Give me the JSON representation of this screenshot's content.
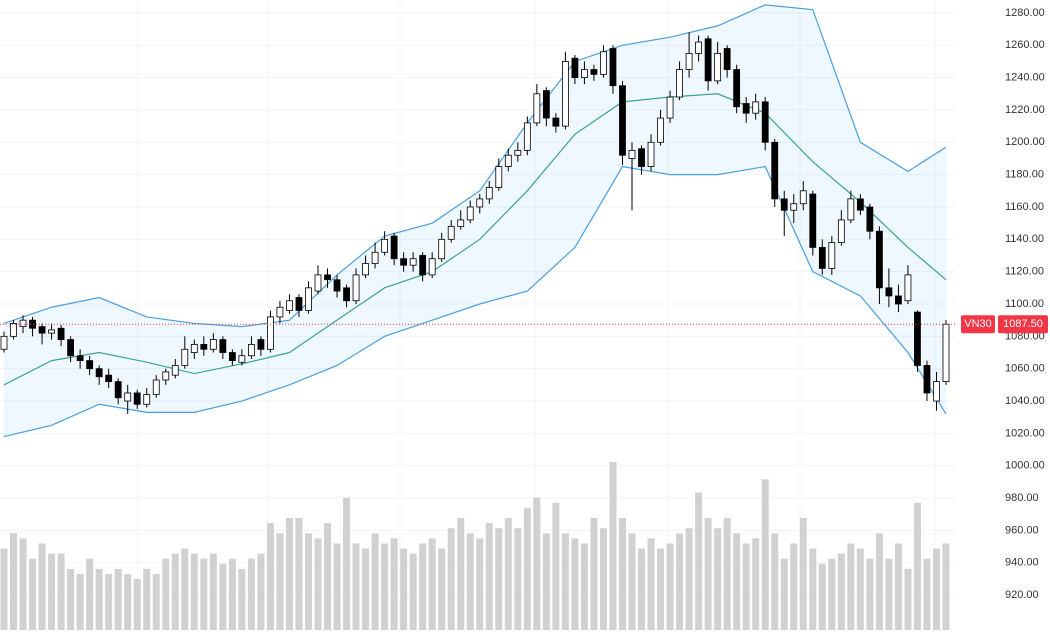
{
  "chart_data": {
    "type": "candlestick",
    "ylim": [
      898.4,
      1288
    ],
    "yticks": [
      {
        "value": 1280,
        "label": "1280.00"
      },
      {
        "value": 1260,
        "label": "1260.00"
      },
      {
        "value": 1240,
        "label": "1240.00"
      },
      {
        "value": 1220,
        "label": "1220.00"
      },
      {
        "value": 1200,
        "label": "1200.00"
      },
      {
        "value": 1180,
        "label": "1180.00"
      },
      {
        "value": 1160,
        "label": "1160.00"
      },
      {
        "value": 1140,
        "label": "1140.00"
      },
      {
        "value": 1120,
        "label": "1120.00"
      },
      {
        "value": 1100,
        "label": "1100.00"
      },
      {
        "value": 1080,
        "label": "1080.00"
      },
      {
        "value": 1060,
        "label": "1060.00"
      },
      {
        "value": 1040,
        "label": "1040.00"
      },
      {
        "value": 1020,
        "label": "1020.00"
      },
      {
        "value": 1000,
        "label": "1000.00"
      },
      {
        "value": 980,
        "label": "980.00"
      },
      {
        "value": 960,
        "label": "960.00"
      },
      {
        "value": 940,
        "label": "940.00"
      },
      {
        "value": 920,
        "label": "920.00"
      }
    ],
    "grid": true,
    "up_color": "#ffffff",
    "down_color": "#000000",
    "ohlc": [
      [
        1072,
        1083,
        1070,
        1080
      ],
      [
        1080,
        1090,
        1078,
        1088
      ],
      [
        1086,
        1093,
        1082,
        1090
      ],
      [
        1090,
        1092,
        1080,
        1085
      ],
      [
        1086,
        1088,
        1075,
        1082
      ],
      [
        1082,
        1088,
        1078,
        1084
      ],
      [
        1085,
        1087,
        1074,
        1078
      ],
      [
        1078,
        1080,
        1064,
        1068
      ],
      [
        1068,
        1072,
        1060,
        1065
      ],
      [
        1065,
        1068,
        1056,
        1060
      ],
      [
        1060,
        1062,
        1050,
        1055
      ],
      [
        1056,
        1060,
        1048,
        1052
      ],
      [
        1052,
        1054,
        1038,
        1042
      ],
      [
        1040,
        1050,
        1032,
        1045
      ],
      [
        1045,
        1047,
        1035,
        1038
      ],
      [
        1038,
        1048,
        1036,
        1044
      ],
      [
        1044,
        1056,
        1042,
        1053
      ],
      [
        1053,
        1060,
        1050,
        1058
      ],
      [
        1056,
        1066,
        1054,
        1062
      ],
      [
        1062,
        1080,
        1060,
        1072
      ],
      [
        1070,
        1078,
        1066,
        1075
      ],
      [
        1075,
        1080,
        1068,
        1072
      ],
      [
        1072,
        1082,
        1070,
        1078
      ],
      [
        1078,
        1080,
        1066,
        1070
      ],
      [
        1070,
        1072,
        1062,
        1065
      ],
      [
        1064,
        1072,
        1062,
        1068
      ],
      [
        1068,
        1080,
        1066,
        1075
      ],
      [
        1078,
        1080,
        1068,
        1072
      ],
      [
        1072,
        1096,
        1070,
        1092
      ],
      [
        1092,
        1102,
        1088,
        1098
      ],
      [
        1096,
        1106,
        1094,
        1102
      ],
      [
        1104,
        1106,
        1092,
        1096
      ],
      [
        1096,
        1114,
        1094,
        1110
      ],
      [
        1108,
        1124,
        1106,
        1118
      ],
      [
        1118,
        1122,
        1110,
        1115
      ],
      [
        1115,
        1118,
        1104,
        1108
      ],
      [
        1110,
        1112,
        1098,
        1102
      ],
      [
        1102,
        1122,
        1100,
        1118
      ],
      [
        1118,
        1130,
        1116,
        1125
      ],
      [
        1125,
        1138,
        1122,
        1132
      ],
      [
        1132,
        1145,
        1130,
        1140
      ],
      [
        1142,
        1144,
        1124,
        1128
      ],
      [
        1128,
        1132,
        1120,
        1124
      ],
      [
        1124,
        1132,
        1120,
        1128
      ],
      [
        1130,
        1132,
        1114,
        1118
      ],
      [
        1118,
        1132,
        1116,
        1128
      ],
      [
        1128,
        1144,
        1126,
        1140
      ],
      [
        1140,
        1152,
        1138,
        1148
      ],
      [
        1148,
        1158,
        1146,
        1152
      ],
      [
        1152,
        1164,
        1150,
        1160
      ],
      [
        1160,
        1168,
        1156,
        1165
      ],
      [
        1165,
        1176,
        1162,
        1172
      ],
      [
        1172,
        1190,
        1170,
        1185
      ],
      [
        1185,
        1196,
        1182,
        1192
      ],
      [
        1192,
        1200,
        1188,
        1195
      ],
      [
        1195,
        1216,
        1192,
        1212
      ],
      [
        1212,
        1236,
        1210,
        1230
      ],
      [
        1232,
        1234,
        1210,
        1215
      ],
      [
        1215,
        1218,
        1206,
        1210
      ],
      [
        1210,
        1256,
        1208,
        1250
      ],
      [
        1252,
        1254,
        1236,
        1240
      ],
      [
        1240,
        1250,
        1236,
        1245
      ],
      [
        1245,
        1248,
        1238,
        1242
      ],
      [
        1242,
        1260,
        1240,
        1256
      ],
      [
        1258,
        1260,
        1230,
        1235
      ],
      [
        1235,
        1238,
        1186,
        1192
      ],
      [
        1190,
        1200,
        1158,
        1195
      ],
      [
        1196,
        1198,
        1180,
        1185
      ],
      [
        1185,
        1205,
        1182,
        1200
      ],
      [
        1200,
        1220,
        1198,
        1215
      ],
      [
        1215,
        1232,
        1212,
        1228
      ],
      [
        1228,
        1250,
        1226,
        1245
      ],
      [
        1245,
        1268,
        1240,
        1255
      ],
      [
        1255,
        1266,
        1250,
        1262
      ],
      [
        1264,
        1266,
        1232,
        1238
      ],
      [
        1238,
        1262,
        1236,
        1255
      ],
      [
        1258,
        1260,
        1240,
        1245
      ],
      [
        1245,
        1248,
        1218,
        1222
      ],
      [
        1224,
        1228,
        1212,
        1218
      ],
      [
        1218,
        1230,
        1214,
        1225
      ],
      [
        1225,
        1228,
        1195,
        1200
      ],
      [
        1200,
        1202,
        1160,
        1165
      ],
      [
        1165,
        1170,
        1142,
        1158
      ],
      [
        1158,
        1168,
        1150,
        1162
      ],
      [
        1162,
        1176,
        1158,
        1170
      ],
      [
        1168,
        1170,
        1130,
        1135
      ],
      [
        1135,
        1140,
        1118,
        1122
      ],
      [
        1122,
        1142,
        1118,
        1138
      ],
      [
        1138,
        1158,
        1136,
        1152
      ],
      [
        1152,
        1170,
        1150,
        1165
      ],
      [
        1165,
        1168,
        1155,
        1158
      ],
      [
        1160,
        1162,
        1140,
        1145
      ],
      [
        1145,
        1148,
        1100,
        1110
      ],
      [
        1110,
        1122,
        1098,
        1105
      ],
      [
        1105,
        1112,
        1095,
        1100
      ],
      [
        1102,
        1124,
        1100,
        1118
      ],
      [
        1095,
        1096,
        1058,
        1062
      ],
      [
        1062,
        1065,
        1040,
        1045
      ],
      [
        1040,
        1058,
        1034,
        1052
      ],
      [
        1052,
        1090,
        1050,
        1087.5
      ]
    ],
    "volume": [
      80,
      95,
      90,
      70,
      85,
      75,
      75,
      60,
      55,
      70,
      60,
      55,
      60,
      55,
      50,
      60,
      55,
      70,
      75,
      80,
      75,
      70,
      75,
      65,
      70,
      60,
      70,
      75,
      105,
      95,
      110,
      110,
      95,
      90,
      105,
      85,
      130,
      85,
      80,
      95,
      85,
      90,
      80,
      75,
      85,
      90,
      80,
      100,
      110,
      95,
      90,
      105,
      100,
      110,
      100,
      120,
      130,
      95,
      125,
      95,
      90,
      85,
      110,
      100,
      165,
      110,
      95,
      80,
      90,
      80,
      85,
      95,
      100,
      135,
      110,
      100,
      110,
      95,
      85,
      90,
      148,
      95,
      70,
      85,
      110,
      80,
      65,
      70,
      75,
      85,
      80,
      70,
      95,
      70,
      85,
      60,
      125,
      70,
      80,
      85
    ],
    "volume_color": "#c9c9cd",
    "band_x": [
      0,
      5,
      10,
      15,
      20,
      25,
      30,
      35,
      40,
      45,
      50,
      55,
      60,
      65,
      70,
      75,
      80,
      85,
      90,
      95,
      99
    ],
    "bands": [
      {
        "color": "#4a9fe0",
        "values": [
          1088,
          1098,
          1104,
          1092,
          1088,
          1086,
          1090,
          1118,
          1142,
          1150,
          1170,
          1212,
          1250,
          1260,
          1265,
          1272,
          1285,
          1282,
          1200,
          1182,
          1197
        ]
      },
      {
        "color": "#3aa58f",
        "values": [
          1050,
          1065,
          1070,
          1064,
          1057,
          1063,
          1070,
          1090,
          1110,
          1120,
          1140,
          1170,
          1205,
          1225,
          1228,
          1230,
          1218,
          1188,
          1163,
          1135,
          1115
        ]
      },
      {
        "color": "#4a9fe0",
        "values": [
          1018,
          1025,
          1038,
          1033,
          1033,
          1040,
          1050,
          1062,
          1080,
          1090,
          1100,
          1108,
          1135,
          1185,
          1180,
          1180,
          1185,
          1120,
          1105,
          1070,
          1032
        ]
      }
    ],
    "band_fill": "rgba(33,150,243,0.07)",
    "last_price": {
      "name": "VN30",
      "value": 1087.5,
      "label": "1087.50",
      "color": "#f23645"
    }
  }
}
